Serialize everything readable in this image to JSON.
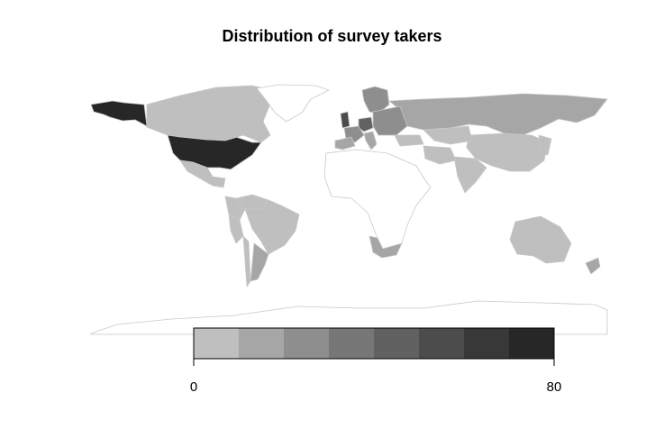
{
  "title": "Distribution of survey takers",
  "legend": {
    "min_label": "0",
    "max_label": "80",
    "range": [
      0,
      80
    ],
    "bins": 8,
    "colors": [
      "#bfbfbf",
      "#a6a6a6",
      "#8e8e8e",
      "#777777",
      "#616161",
      "#4c4c4c",
      "#383838",
      "#272727"
    ]
  },
  "map": {
    "projection": "equirectangular",
    "no_data_color": "#ffffff",
    "border_color": "#c8c8c8",
    "regions": [
      {
        "name": "United States",
        "value": 80
      },
      {
        "name": "Alaska",
        "value": 80
      },
      {
        "name": "Canada",
        "value": 5
      },
      {
        "name": "Mexico",
        "value": 5
      },
      {
        "name": "Brazil",
        "value": 5
      },
      {
        "name": "Argentina",
        "value": 10
      },
      {
        "name": "Chile",
        "value": 5
      },
      {
        "name": "Colombia",
        "value": 5
      },
      {
        "name": "Peru",
        "value": 5
      },
      {
        "name": "Venezuela",
        "value": 5
      },
      {
        "name": "Russia",
        "value": 15
      },
      {
        "name": "China",
        "value": 5
      },
      {
        "name": "India",
        "value": 5
      },
      {
        "name": "Australia",
        "value": 5
      },
      {
        "name": "Japan",
        "value": 5
      },
      {
        "name": "Kazakhstan",
        "value": 5
      },
      {
        "name": "Iran",
        "value": 5
      },
      {
        "name": "South Africa",
        "value": 10
      },
      {
        "name": "New Zealand",
        "value": 10
      },
      {
        "name": "United Kingdom",
        "value": 50
      },
      {
        "name": "Germany",
        "value": 45
      },
      {
        "name": "France",
        "value": 25
      },
      {
        "name": "Spain",
        "value": 10
      },
      {
        "name": "Italy",
        "value": 15
      },
      {
        "name": "Scandinavia",
        "value": 20
      },
      {
        "name": "Eastern Europe",
        "value": 20
      },
      {
        "name": "Turkey",
        "value": 5
      },
      {
        "name": "Greenland",
        "value": 0
      },
      {
        "name": "Africa (other)",
        "value": 0
      },
      {
        "name": "Antarctica",
        "value": 0
      }
    ]
  }
}
